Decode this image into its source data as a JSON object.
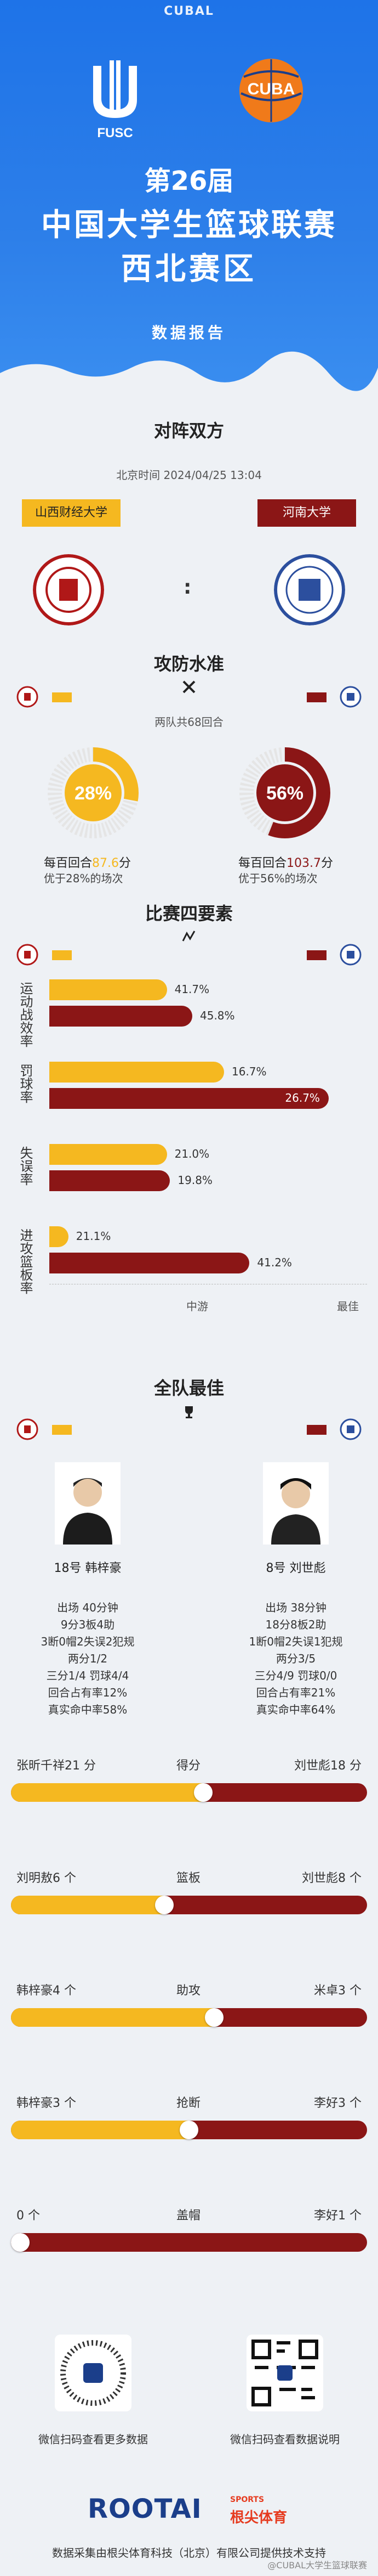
{
  "header": {
    "brand": "CUBAL",
    "left_logo_text": "FUSC",
    "right_logo_text": "CUBA",
    "edition": "第26届",
    "title_line1": "中国大学生篮球联赛",
    "title_line2": "西北赛区",
    "subtitle": "数据报告"
  },
  "matchup": {
    "title": "对阵双方",
    "time": "北京时间  2024/04/25 13:04",
    "home": "山西财经大学",
    "away": "河南大学",
    "colon": ":"
  },
  "offense": {
    "title": "攻防水准",
    "rounds": "两队共68回合",
    "home_pct": "28%",
    "home_pct_value": 28,
    "away_pct": "56%",
    "away_pct_value": 56,
    "home_line1_prefix": "每百回合",
    "home_line1_value": "87.6",
    "home_line1_suffix": "分",
    "home_line2": "优于28%的场次",
    "away_line1_prefix": "每百回合",
    "away_line1_value": "103.7",
    "away_line1_suffix": "分",
    "away_line2": "优于56%的场次"
  },
  "four_factors": {
    "title": "比赛四要素",
    "axis_mid": "中游",
    "axis_best": "最佳",
    "groups": [
      {
        "label": "运动战效率",
        "home": "41.7%",
        "home_frac": 0.37,
        "away": "45.8%",
        "away_frac": 0.45
      },
      {
        "label": "罚球率",
        "home": "16.7%",
        "home_frac": 0.55,
        "away": "26.7%",
        "away_frac": 0.88
      },
      {
        "label": "失误率",
        "home": "21.0%",
        "home_frac": 0.37,
        "away": "19.8%",
        "away_frac": 0.38
      },
      {
        "label": "进攻篮板率",
        "home": "21.1%",
        "home_frac": 0.06,
        "away": "41.2%",
        "away_frac": 0.63
      }
    ]
  },
  "best": {
    "title": "全队最佳",
    "home_player": {
      "name": "18号 韩梓豪",
      "stats": [
        "出场 40分钟",
        "9分3板4助",
        "3断0帽2失误2犯规",
        "两分1/2",
        "三分1/4 罚球4/4",
        "回合占有率12%",
        "真实命中率58%"
      ]
    },
    "away_player": {
      "name": "8号 刘世彪",
      "stats": [
        "出场 38分钟",
        "18分8板2助",
        "1断0帽2失误1犯规",
        "两分3/5",
        "三分4/9 罚球0/0",
        "回合占有率21%",
        "真实命中率64%"
      ]
    }
  },
  "compare": [
    {
      "left": "张昕千祥21 分",
      "center": "得分",
      "right": "刘世彪18 分",
      "frac": 0.54
    },
    {
      "left": "刘明敖6 个",
      "center": "篮板",
      "right": "刘世彪8 个",
      "frac": 0.43
    },
    {
      "left": "韩梓豪4 个",
      "center": "助攻",
      "right": "米卓3 个",
      "frac": 0.57
    },
    {
      "left": "韩梓豪3 个",
      "center": "抢断",
      "right": "李好3 个",
      "frac": 0.5
    },
    {
      "left": "0 个",
      "center": "盖帽",
      "right": "李好1 个",
      "frac": 0.0
    }
  ],
  "qr": {
    "left_caption": "微信扫码查看更多数据",
    "right_caption": "微信扫码查看数据说明"
  },
  "footer": {
    "logo": "ROOTAI",
    "sports": "SPORTS",
    "cn": "根尖体育",
    "credit": "数据采集由根尖体育科技（北京）有限公司提供技术支持",
    "watermark": "@CUBAL大学生篮球联赛"
  },
  "colors": {
    "home": "#f5b820",
    "away": "#8b1616",
    "hero": "#1e73e8"
  }
}
